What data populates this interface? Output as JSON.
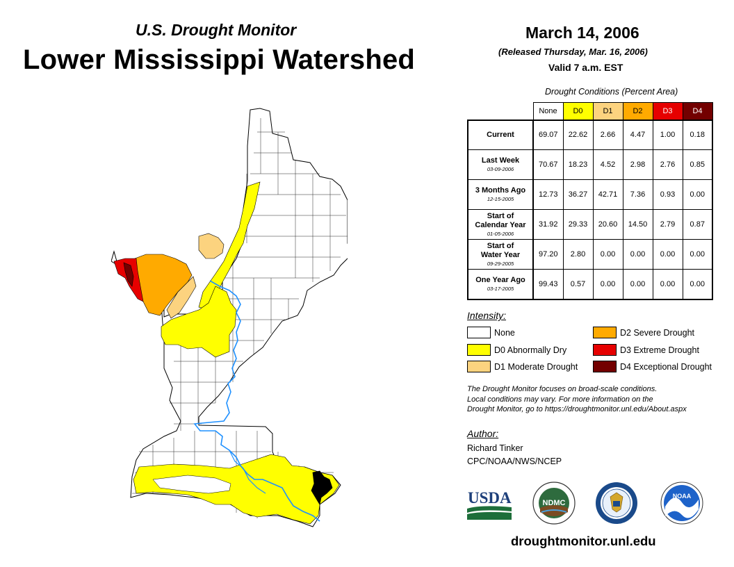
{
  "header": {
    "subtitle": "U.S. Drought Monitor",
    "title": "Lower Mississippi Watershed",
    "date": "March 14, 2006",
    "released": "(Released Thursday, Mar. 16, 2006)",
    "valid": "Valid 7 a.m. EST"
  },
  "table": {
    "caption": "Drought Conditions (Percent Area)",
    "columns": [
      "None",
      "D0",
      "D1",
      "D2",
      "D3",
      "D4"
    ],
    "rows": [
      {
        "label": "Current",
        "label2": "",
        "date": "",
        "values": [
          "69.07",
          "22.62",
          "2.66",
          "4.47",
          "1.00",
          "0.18"
        ]
      },
      {
        "label": "Last Week",
        "label2": "",
        "date": "03-09-2006",
        "values": [
          "70.67",
          "18.23",
          "4.52",
          "2.98",
          "2.76",
          "0.85"
        ]
      },
      {
        "label": "3 Months Ago",
        "label2": "",
        "date": "12-15-2005",
        "values": [
          "12.73",
          "36.27",
          "42.71",
          "7.36",
          "0.93",
          "0.00"
        ]
      },
      {
        "label": "Start of",
        "label2": "Calendar Year",
        "date": "01-05-2006",
        "values": [
          "31.92",
          "29.33",
          "20.60",
          "14.50",
          "2.79",
          "0.87"
        ]
      },
      {
        "label": "Start of",
        "label2": "Water Year",
        "date": "09-29-2005",
        "values": [
          "97.20",
          "2.80",
          "0.00",
          "0.00",
          "0.00",
          "0.00"
        ]
      },
      {
        "label": "One Year Ago",
        "label2": "",
        "date": "03-17-2005",
        "values": [
          "99.43",
          "0.57",
          "0.00",
          "0.00",
          "0.00",
          "0.00"
        ]
      }
    ]
  },
  "legend": {
    "title": "Intensity:",
    "items": [
      {
        "label": "None",
        "color": "#ffffff"
      },
      {
        "label": "D0 Abnormally Dry",
        "color": "#ffff00"
      },
      {
        "label": "D1 Moderate Drought",
        "color": "#fcd37f"
      },
      {
        "label": "D2 Severe Drought",
        "color": "#ffaa00"
      },
      {
        "label": "D3 Extreme Drought",
        "color": "#e60000"
      },
      {
        "label": "D4 Exceptional Drought",
        "color": "#730000"
      }
    ]
  },
  "note": {
    "line1": "The Drought Monitor focuses on broad-scale conditions.",
    "line2": "Local conditions may vary. For more information on the",
    "line3": "Drought Monitor, go to https://droughtmonitor.unl.edu/About.aspx"
  },
  "author": {
    "title": "Author:",
    "name": "Richard Tinker",
    "org": "CPC/NOAA/NWS/NCEP"
  },
  "logos": {
    "usda": "USDA",
    "ndmc": "NDMC",
    "noaa": "NOAA"
  },
  "footer": {
    "site": "droughtmonitor.unl.edu"
  },
  "map": {
    "river_color": "#1e90ff",
    "coast_color": "#000000"
  }
}
